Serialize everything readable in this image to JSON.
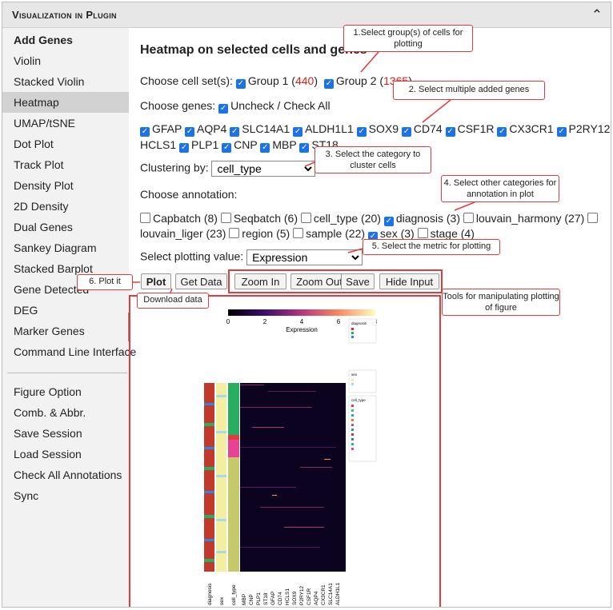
{
  "header": {
    "title": "Visualization in Plugin"
  },
  "sidebar": {
    "items": [
      {
        "label": "Add Genes"
      },
      {
        "label": "Violin"
      },
      {
        "label": "Stacked Violin"
      },
      {
        "label": "Heatmap"
      },
      {
        "label": "UMAP/tSNE"
      },
      {
        "label": "Dot Plot"
      },
      {
        "label": "Track Plot"
      },
      {
        "label": "Density Plot"
      },
      {
        "label": "2D Density"
      },
      {
        "label": "Dual Genes"
      },
      {
        "label": "Sankey Diagram"
      },
      {
        "label": "Stacked Barplot"
      },
      {
        "label": "Gene Detected"
      },
      {
        "label": "DEG"
      },
      {
        "label": "Marker Genes"
      },
      {
        "label": "Command Line Interface"
      },
      {
        "label": "Figure Option"
      },
      {
        "label": "Comb. & Abbr."
      },
      {
        "label": "Save Session"
      },
      {
        "label": "Load Session"
      },
      {
        "label": "Check All Annotations"
      },
      {
        "label": "Sync"
      }
    ]
  },
  "main": {
    "heading": "Heatmap on selected cells and genes",
    "cellset_label": "Choose cell set(s):",
    "groups": [
      {
        "name": "Group 1",
        "open": " (",
        "count": "440",
        "close": ")"
      },
      {
        "name": "Group 2",
        "open": " (",
        "count": "1365",
        "close": ")"
      }
    ],
    "genes_label": "Choose genes:",
    "check_all": "Uncheck / Check All",
    "genes_line1": [
      "GFAP",
      "AQP4",
      "SLC14A1",
      "ALDH1L1",
      "SOX9",
      "CD74",
      "CSF1R",
      "CX3CR1",
      "P2RY12"
    ],
    "genes_line2": [
      "HCLS1",
      "PLP1",
      "CNP",
      "MBP",
      "ST18"
    ],
    "clustering_label": "Clustering by:",
    "clustering_value": "cell_type",
    "annotation_label": "Choose annotation:",
    "annotations_line1": [
      {
        "label": "Capbatch (8)",
        "checked": false
      },
      {
        "label": "Seqbatch (6)",
        "checked": false
      },
      {
        "label": "cell_type (20)",
        "checked": false
      },
      {
        "label": "diagnosis (3)",
        "checked": true
      },
      {
        "label": "louvain_harmony (27)",
        "checked": false
      }
    ],
    "annotations_line2": [
      {
        "label": "louvain_liger (23)",
        "checked": false
      },
      {
        "label": "region (5)",
        "checked": false
      },
      {
        "label": "sample (22)",
        "checked": false
      },
      {
        "label": "sex (3)",
        "checked": true
      },
      {
        "label": "stage (4)",
        "checked": false
      }
    ],
    "plotting_label": "Select plotting value:",
    "plotting_value": "Expression",
    "buttons": [
      "Plot",
      "Get Data",
      "Zoom In",
      "Zoom Out",
      "Save",
      "Hide Input"
    ]
  },
  "callouts": {
    "c1": "1.Select group(s) of cells for plotting",
    "c2": "2. Select multiple added genes",
    "c3": "3. Select the category to cluster cells",
    "c4": "4. Select other categories for annotation in plot",
    "c5": "5. Select the metric for plotting",
    "c6": "6. Plot it",
    "c7": "Download data",
    "c8": "Tools for manipulating plotting of figure"
  },
  "heatmap": {
    "colorbar_ticks": [
      "0",
      "2",
      "4",
      "6",
      "8"
    ],
    "colorbar_label": "Expression",
    "legend_titles": [
      "diagnosis",
      "sex",
      "cell_type"
    ],
    "column_labels": [
      "diagnosis",
      "sex",
      "cell_type",
      "MBP",
      "CNP",
      "PLP1",
      "ST18",
      "GFAP",
      "CD74",
      "HCLS1",
      "SOX9",
      "P2RY12",
      "CSF1R",
      "AQP4",
      "CX3CR1",
      "SLC14A1",
      "ALDH1L1"
    ],
    "colors": {
      "low": "#0b0320",
      "high": "#fcf3b0",
      "accent": "#1a73e8",
      "annotation_red": "#e23b3b"
    }
  }
}
